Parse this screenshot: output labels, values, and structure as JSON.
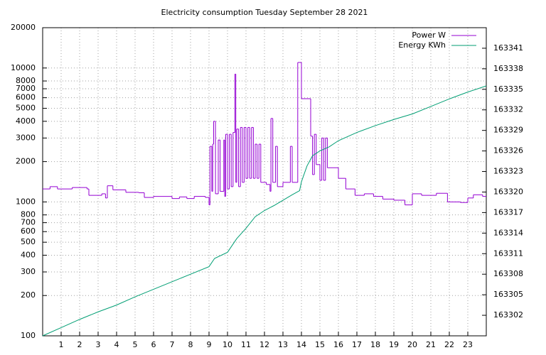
{
  "chart_data": {
    "type": "line",
    "title": "Electricity consumption Tuesday September 28 2021",
    "xlim": [
      0,
      24
    ],
    "xticks": [
      1,
      2,
      3,
      4,
      5,
      6,
      7,
      8,
      9,
      10,
      11,
      12,
      13,
      14,
      15,
      16,
      17,
      18,
      19,
      20,
      21,
      22,
      23
    ],
    "ylim": [
      100,
      20000
    ],
    "ylog": true,
    "yticks": [
      100,
      200,
      300,
      400,
      500,
      600,
      700,
      800,
      1000,
      2000,
      3000,
      4000,
      5000,
      6000,
      7000,
      8000,
      10000,
      20000
    ],
    "y2lim": [
      163299,
      163344
    ],
    "y2ticks": [
      163302,
      163305,
      163308,
      163311,
      163314,
      163317,
      163320,
      163323,
      163326,
      163329,
      163332,
      163335,
      163338,
      163341
    ],
    "grid": true,
    "legend": "top-right",
    "series": [
      {
        "name": "Power W",
        "color": "#9400d3",
        "style": "steps",
        "axis": "y",
        "x": [
          0,
          0.4,
          0.8,
          1.6,
          2.4,
          2.5,
          3.2,
          3.4,
          3.5,
          3.8,
          4.5,
          5.2,
          5.5,
          6,
          7,
          7.4,
          7.8,
          8.2,
          8.8,
          9,
          9.05,
          9.15,
          9.2,
          9.25,
          9.35,
          9.5,
          9.6,
          9.8,
          9.85,
          9.9,
          10,
          10.1,
          10.2,
          10.3,
          10.4,
          10.45,
          10.5,
          10.6,
          10.7,
          10.8,
          10.9,
          11,
          11.1,
          11.2,
          11.3,
          11.4,
          11.5,
          11.6,
          11.7,
          11.8,
          12.1,
          12.3,
          12.35,
          12.45,
          12.6,
          12.7,
          13,
          13.4,
          13.5,
          13.8,
          14,
          14.5,
          14.6,
          14.7,
          14.8,
          15,
          15.1,
          15.2,
          15.3,
          15.4,
          16,
          16.4,
          16.9,
          17.4,
          17.9,
          18.4,
          19,
          19.6,
          20,
          20.5,
          21.3,
          21.9,
          22.6,
          23,
          23.3,
          23.8
        ],
        "values": [
          1250,
          1300,
          1250,
          1280,
          1250,
          1120,
          1150,
          1070,
          1320,
          1230,
          1180,
          1170,
          1080,
          1100,
          1060,
          1090,
          1060,
          1100,
          1080,
          950,
          2600,
          1200,
          2700,
          4000,
          1150,
          2900,
          1200,
          2900,
          1100,
          3200,
          1250,
          3200,
          1300,
          3300,
          9000,
          1400,
          3500,
          1300,
          3600,
          1400,
          3600,
          1500,
          3600,
          1500,
          3600,
          1500,
          2700,
          1500,
          2700,
          1400,
          1350,
          1200,
          4200,
          1400,
          2600,
          1300,
          1400,
          2600,
          1400,
          11000,
          5900,
          3100,
          1600,
          3200,
          1900,
          1450,
          3000,
          1450,
          3000,
          1800,
          1500,
          1250,
          1120,
          1150,
          1100,
          1050,
          1030,
          950,
          1150,
          1120,
          1160,
          1000,
          990,
          1070,
          1130,
          1100
        ]
      },
      {
        "name": "Energy KWh",
        "color": "#009e73",
        "style": "line",
        "axis": "y2",
        "x": [
          0,
          1,
          2,
          3,
          4,
          5,
          6,
          7,
          8,
          9,
          9.3,
          10,
          10.5,
          11,
          11.5,
          12,
          12.5,
          13,
          13.5,
          13.9,
          14,
          14.3,
          14.6,
          15,
          15.5,
          16,
          17,
          18,
          19,
          20,
          21,
          22,
          23,
          24
        ],
        "values": [
          163299,
          163300.2,
          163301.4,
          163302.5,
          163303.5,
          163304.7,
          163305.8,
          163306.9,
          163308,
          163309.1,
          163310.3,
          163311.2,
          163313.2,
          163314.7,
          163316.4,
          163317.3,
          163318,
          163318.8,
          163319.6,
          163320.2,
          163321.5,
          163323.8,
          163325.3,
          163326,
          163326.6,
          163327.5,
          163328.7,
          163329.7,
          163330.6,
          163331.4,
          163332.5,
          163333.6,
          163334.6,
          163335.5
        ]
      }
    ]
  }
}
